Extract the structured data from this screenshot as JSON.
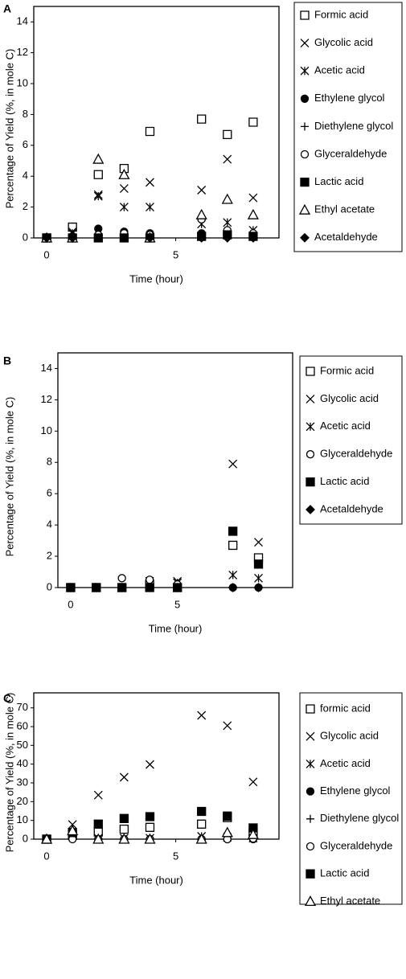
{
  "chart_data": [
    {
      "type": "scatter",
      "panel": "A",
      "x_label": "Time (hour)",
      "y_label": "Percentage of Yield (%, in mole C)",
      "x": [
        0,
        1,
        2,
        3,
        4,
        6,
        7,
        8
      ],
      "xlim": [
        -0.5,
        9
      ],
      "xticks": [
        0,
        5
      ],
      "ylim": [
        0,
        15
      ],
      "yticks": [
        0,
        2,
        4,
        6,
        8,
        10,
        12,
        14
      ],
      "series": [
        {
          "name": "Formic acid",
          "marker": "square-open",
          "color": "#000000",
          "values": [
            0,
            0.7,
            4.1,
            4.5,
            6.9,
            7.7,
            6.7,
            7.5
          ]
        },
        {
          "name": "Glycolic acid",
          "marker": "x",
          "color": "#000000",
          "values": [
            0,
            0.4,
            2.8,
            3.2,
            3.6,
            3.1,
            5.1,
            2.6
          ]
        },
        {
          "name": "Acetic acid",
          "marker": "asterisk",
          "color": "#000000",
          "values": [
            0,
            0.3,
            2.7,
            2.0,
            2.0,
            0.9,
            1.0,
            0.5
          ]
        },
        {
          "name": "Ethylene glycol",
          "marker": "circle-filled",
          "color": "#000000",
          "values": [
            0,
            0.1,
            0.6,
            0.4,
            0.3,
            0.3,
            0.2,
            0.2
          ]
        },
        {
          "name": "Diethylene glycol",
          "marker": "plus",
          "color": "#000000",
          "values": [
            0,
            0.1,
            0,
            0,
            0,
            0,
            0,
            0
          ]
        },
        {
          "name": "Glyceraldehyde",
          "marker": "circle-open",
          "color": "#000000",
          "values": [
            0,
            0.1,
            0.2,
            0.3,
            0.2,
            1.2,
            0.5,
            0.3
          ]
        },
        {
          "name": "Lactic acid",
          "marker": "square-filled",
          "color": "#000000",
          "values": [
            0,
            0,
            0,
            0,
            0,
            0.1,
            0.2,
            0.1
          ]
        },
        {
          "name": "Ethyl acetate",
          "marker": "triangle-open",
          "color": "#000000",
          "values": [
            0,
            0,
            5.1,
            4.1,
            0,
            1.5,
            2.5,
            1.5
          ]
        },
        {
          "name": "Acetaldehyde",
          "marker": "diamond-filled",
          "color": "#000000",
          "values": [
            0,
            0,
            0,
            0,
            0,
            0,
            0,
            0
          ]
        }
      ]
    },
    {
      "type": "scatter",
      "panel": "B",
      "x_label": "Time (hour)",
      "y_label": "Percentage of Yield (%, in mole C)",
      "x": [
        0,
        1.2,
        2.4,
        3.7,
        5,
        7.6,
        8.8
      ],
      "xlim": [
        -0.6,
        10.4
      ],
      "xticks": [
        0,
        5
      ],
      "ylim": [
        0,
        15
      ],
      "yticks": [
        0,
        2,
        4,
        6,
        8,
        10,
        12,
        14
      ],
      "series": [
        {
          "name": "Formic acid",
          "marker": "square-open",
          "color": "#000000",
          "values": [
            0,
            0,
            0,
            0.2,
            0,
            2.7,
            1.9
          ]
        },
        {
          "name": "Glycolic acid",
          "marker": "x",
          "color": "#000000",
          "values": [
            0,
            0,
            0,
            0.4,
            0.4,
            7.9,
            2.9
          ]
        },
        {
          "name": "Acetic acid",
          "marker": "asterisk",
          "color": "#000000",
          "values": [
            0,
            0,
            0,
            0.3,
            0.3,
            0.8,
            0.6
          ]
        },
        {
          "name": "Glyceraldehyde",
          "marker": "circle-open",
          "color": "#000000",
          "values": [
            0,
            0,
            0.6,
            0.5,
            0.2,
            0,
            0
          ]
        },
        {
          "name": "Lactic acid",
          "marker": "square-filled",
          "color": "#000000",
          "values": [
            0,
            0,
            0,
            0,
            0,
            3.6,
            1.5
          ]
        },
        {
          "name": "Acetaldehyde",
          "marker": "diamond-filled",
          "color": "#000000",
          "values": [
            0,
            0,
            0,
            0,
            0,
            0,
            0
          ]
        }
      ]
    },
    {
      "type": "scatter",
      "panel": "C",
      "x_label": "Time (hour)",
      "y_label": "Percentage of Yield (%, in mole C)",
      "x": [
        0,
        1,
        2,
        3,
        4,
        6,
        7,
        8
      ],
      "xlim": [
        -0.5,
        9
      ],
      "xticks": [
        0,
        5
      ],
      "ylim": [
        0,
        78
      ],
      "yticks": [
        0,
        10,
        20,
        30,
        40,
        50,
        60,
        70
      ],
      "series": [
        {
          "name": "formic acid",
          "marker": "square-open",
          "color": "#000000",
          "values": [
            0,
            2,
            3.8,
            5.3,
            6.3,
            8,
            11.5,
            3.5
          ]
        },
        {
          "name": "Glycolic acid",
          "marker": "x",
          "color": "#000000",
          "values": [
            0,
            7.8,
            23.5,
            33,
            39.8,
            66,
            60.5,
            30.5
          ]
        },
        {
          "name": "Acetic acid",
          "marker": "asterisk",
          "color": "#000000",
          "values": [
            0,
            3,
            0.5,
            0.5,
            0.5,
            1.5,
            1,
            0.5
          ]
        },
        {
          "name": "Ethylene glycol",
          "marker": "circle-filled",
          "color": "#000000",
          "values": [
            0,
            0.5,
            0,
            0,
            0,
            0,
            0,
            0
          ]
        },
        {
          "name": "Diethylene glycol",
          "marker": "plus",
          "color": "#000000",
          "values": [
            0,
            1,
            0,
            0,
            0,
            0,
            0,
            0
          ]
        },
        {
          "name": "Glyceraldehyde",
          "marker": "circle-open",
          "color": "#000000",
          "values": [
            0,
            0,
            0,
            0,
            0,
            0,
            0,
            0.3
          ]
        },
        {
          "name": "Lactic acid",
          "marker": "square-filled",
          "color": "#000000",
          "values": [
            0,
            3.5,
            8,
            11,
            12,
            14.8,
            12.3,
            6
          ]
        },
        {
          "name": "Ethyl acetate",
          "marker": "triangle-open",
          "color": "#000000",
          "values": [
            0,
            4.5,
            0,
            0,
            0,
            0,
            3.5,
            2.5
          ]
        }
      ]
    }
  ]
}
